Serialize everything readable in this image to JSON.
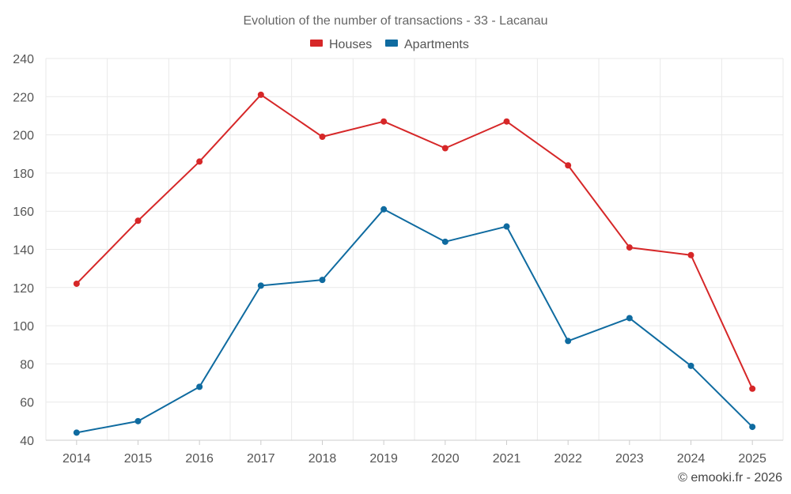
{
  "chart_data": {
    "type": "line",
    "title": "Evolution of the number of transactions - 33 - Lacanau",
    "categories": [
      "2014",
      "2015",
      "2016",
      "2017",
      "2018",
      "2019",
      "2020",
      "2021",
      "2022",
      "2023",
      "2024",
      "2025"
    ],
    "series": [
      {
        "name": "Houses",
        "color": "#d62728",
        "values": [
          122,
          155,
          186,
          221,
          199,
          207,
          193,
          207,
          184,
          141,
          137,
          67
        ]
      },
      {
        "name": "Apartments",
        "color": "#0f6ba0",
        "values": [
          44,
          50,
          68,
          121,
          124,
          161,
          144,
          152,
          92,
          104,
          79,
          47
        ]
      }
    ],
    "ylim": [
      40,
      240
    ],
    "yticks": [
      40,
      60,
      80,
      100,
      120,
      140,
      160,
      180,
      200,
      220,
      240
    ],
    "xlabel": "",
    "ylabel": "",
    "grid": true,
    "legend": "top-center"
  },
  "credit": "© emooki.fr - 2026"
}
